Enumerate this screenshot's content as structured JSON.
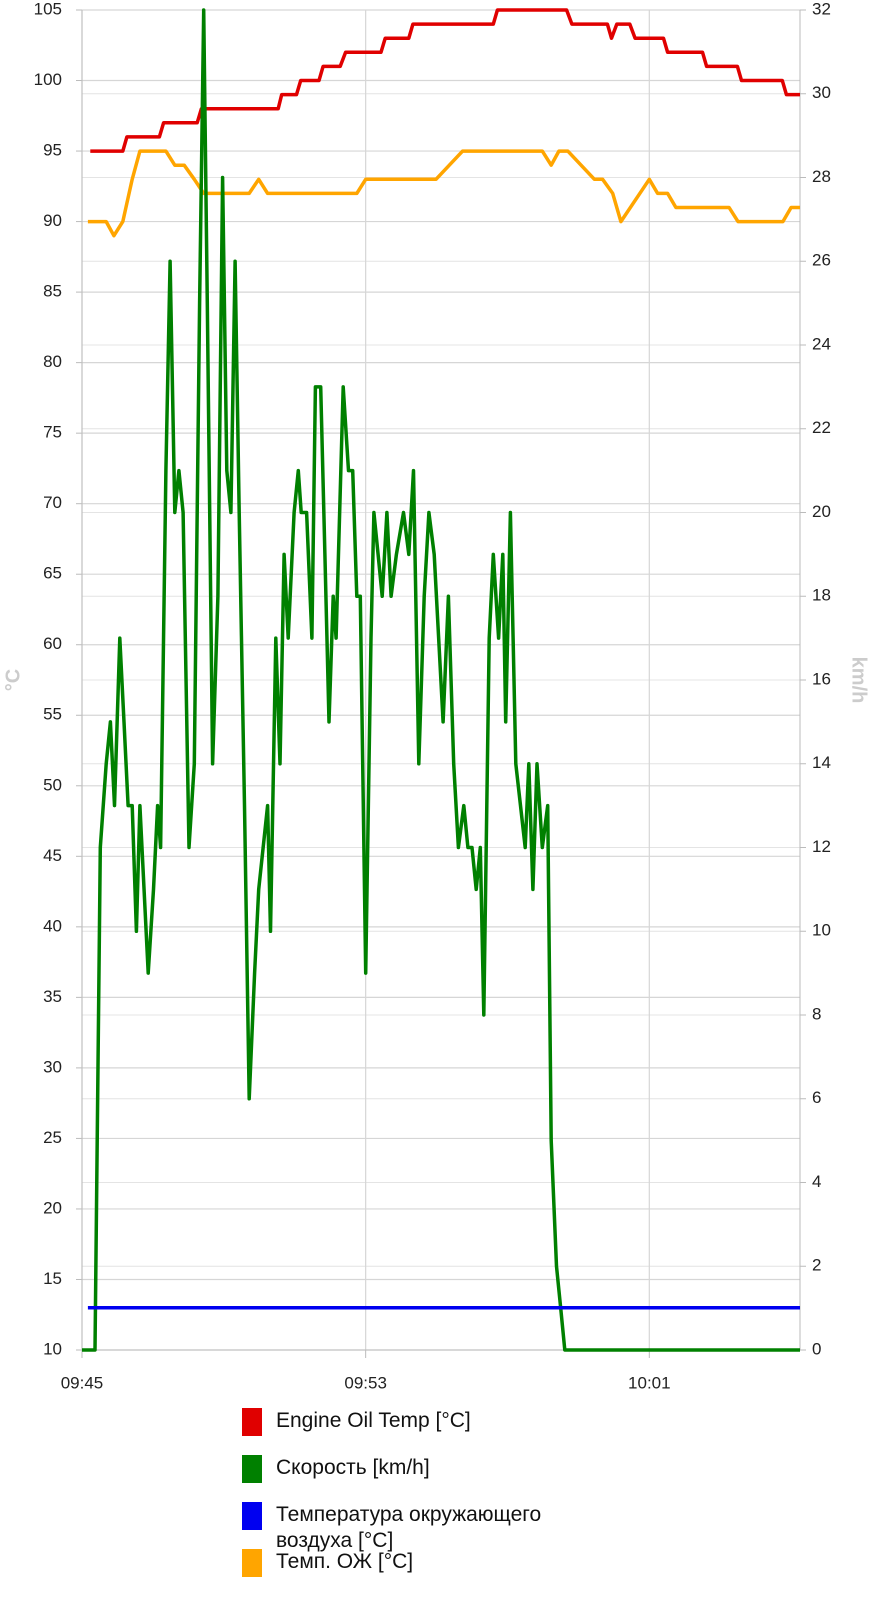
{
  "chart_data": {
    "type": "line",
    "ylabel": "°C",
    "y2label": "km/h",
    "xlim": [
      "09:45:00",
      "10:05:15"
    ],
    "xticks": [
      {
        "value": "09:45:00",
        "label": "09:45"
      },
      {
        "value": "09:53:00",
        "label": "09:53"
      },
      {
        "value": "10:01:00",
        "label": "10:01"
      }
    ],
    "ylim": [
      10,
      105
    ],
    "yticks": [
      10,
      15,
      20,
      25,
      30,
      35,
      40,
      45,
      50,
      55,
      60,
      65,
      70,
      75,
      80,
      85,
      90,
      95,
      100,
      105
    ],
    "y2lim": [
      0,
      32
    ],
    "y2ticks": [
      0,
      2,
      4,
      6,
      8,
      10,
      12,
      14,
      16,
      18,
      20,
      22,
      24,
      26,
      28,
      30,
      32
    ],
    "grid": true,
    "series": [
      {
        "name": "Engine Oil Temp [°C]",
        "color": "#e00000",
        "axis": "y",
        "x": [
          "09:45:14",
          "09:46:09",
          "09:46:16",
          "09:47:11",
          "09:47:18",
          "09:48:15",
          "09:48:22",
          "09:50:32",
          "09:50:38",
          "09:51:03",
          "09:51:10",
          "09:51:41",
          "09:51:48",
          "09:52:17",
          "09:52:26",
          "09:53:26",
          "09:53:33",
          "09:54:13",
          "09:54:20",
          "09:56:36",
          "09:56:43",
          "09:58:40",
          "09:58:49",
          "09:59:49",
          "09:59:56",
          "10:00:05",
          "10:00:27",
          "10:00:36",
          "10:01:24",
          "10:01:31",
          "10:02:30",
          "10:02:37",
          "10:03:29",
          "10:03:36",
          "10:04:45",
          "10:04:52",
          "10:05:15"
        ],
        "values": [
          95,
          95,
          96,
          96,
          97,
          97,
          98,
          98,
          99,
          99,
          100,
          100,
          101,
          101,
          102,
          102,
          103,
          103,
          104,
          104,
          105,
          105,
          104,
          104,
          103,
          104,
          104,
          103,
          103,
          102,
          102,
          101,
          101,
          100,
          100,
          99,
          99
        ]
      },
      {
        "name": "Скорость [km/h]",
        "color": "#008000",
        "axis": "y2",
        "x": [
          "09:45:00",
          "09:45:22",
          "09:45:31",
          "09:45:41",
          "09:45:48",
          "09:45:55",
          "09:46:04",
          "09:46:11",
          "09:46:18",
          "09:46:25",
          "09:46:32",
          "09:46:38",
          "09:46:52",
          "09:47:01",
          "09:47:08",
          "09:47:13",
          "09:47:22",
          "09:47:29",
          "09:47:37",
          "09:47:44",
          "09:47:51",
          "09:48:01",
          "09:48:10",
          "09:48:19",
          "09:48:26",
          "09:48:32",
          "09:48:41",
          "09:48:50",
          "09:48:58",
          "09:49:05",
          "09:49:12",
          "09:49:19",
          "09:49:26",
          "09:49:35",
          "09:49:43",
          "09:49:52",
          "09:49:59",
          "09:50:14",
          "09:50:19",
          "09:50:28",
          "09:50:35",
          "09:50:42",
          "09:50:49",
          "09:50:59",
          "09:51:06",
          "09:51:11",
          "09:51:20",
          "09:51:29",
          "09:51:35",
          "09:51:44",
          "09:51:51",
          "09:51:58",
          "09:52:05",
          "09:52:10",
          "09:52:22",
          "09:52:31",
          "09:52:38",
          "09:52:45",
          "09:52:51",
          "09:53:00",
          "09:53:09",
          "09:53:14",
          "09:53:21",
          "09:53:28",
          "09:53:36",
          "09:53:43",
          "09:53:52",
          "09:54:04",
          "09:54:13",
          "09:54:21",
          "09:54:30",
          "09:54:39",
          "09:54:47",
          "09:54:56",
          "09:55:11",
          "09:55:20",
          "09:55:29",
          "09:55:37",
          "09:55:46",
          "09:55:53",
          "09:56:00",
          "09:56:07",
          "09:56:14",
          "09:56:20",
          "09:56:29",
          "09:56:36",
          "09:56:45",
          "09:56:52",
          "09:56:57",
          "09:57:05",
          "09:57:14",
          "09:57:30",
          "09:57:36",
          "09:57:43",
          "09:57:50",
          "09:57:59",
          "09:58:08",
          "09:58:14",
          "09:58:23",
          "09:58:30",
          "09:58:37",
          "10:05:15"
        ],
        "values": [
          0,
          0,
          12,
          14,
          15,
          13,
          17,
          15,
          13,
          13,
          10,
          13,
          9,
          11,
          13,
          12,
          21,
          26,
          20,
          21,
          20,
          12,
          14,
          25,
          32,
          25,
          14,
          18,
          28,
          21,
          20,
          26,
          20,
          13,
          6,
          9,
          11,
          13,
          10,
          17,
          14,
          19,
          17,
          20,
          21,
          20,
          20,
          17,
          23,
          23,
          19,
          15,
          18,
          17,
          23,
          21,
          21,
          18,
          18,
          9,
          17,
          20,
          19,
          18,
          20,
          18,
          19,
          20,
          19,
          21,
          14,
          18,
          20,
          19,
          15,
          18,
          14,
          12,
          13,
          12,
          12,
          11,
          12,
          8,
          17,
          19,
          17,
          19,
          15,
          20,
          14,
          12,
          14,
          11,
          14,
          12,
          13,
          5,
          2,
          1,
          0,
          0
        ]
      },
      {
        "name": "Температура окружающего воздуха [°C]",
        "color": "#0000f0",
        "axis": "y",
        "x": [
          "09:45:10",
          "10:05:15"
        ],
        "values": [
          13,
          13
        ]
      },
      {
        "name": "Темп. ОЖ [°C]",
        "color": "#ffa500",
        "axis": "y",
        "x": [
          "09:45:10",
          "09:45:41",
          "09:45:54",
          "09:46:09",
          "09:46:25",
          "09:46:38",
          "09:47:22",
          "09:47:37",
          "09:47:53",
          "09:48:10",
          "09:48:26",
          "09:49:43",
          "09:49:59",
          "09:50:14",
          "09:52:45",
          "09:53:00",
          "09:54:59",
          "09:55:44",
          "09:57:59",
          "09:58:14",
          "09:58:27",
          "09:58:42",
          "09:59:27",
          "09:59:41",
          "09:59:58",
          "10:00:12",
          "10:01:00",
          "10:01:14",
          "10:01:31",
          "10:01:45",
          "10:03:15",
          "10:03:30",
          "10:04:46",
          "10:05:00",
          "10:05:15"
        ],
        "values": [
          90,
          90,
          89,
          90,
          93,
          95,
          95,
          94,
          94,
          93,
          92,
          92,
          93,
          92,
          92,
          93,
          93,
          95,
          95,
          94,
          95,
          95,
          93,
          93,
          92,
          90,
          93,
          92,
          92,
          91,
          91,
          90,
          90,
          91,
          91
        ]
      }
    ]
  }
}
